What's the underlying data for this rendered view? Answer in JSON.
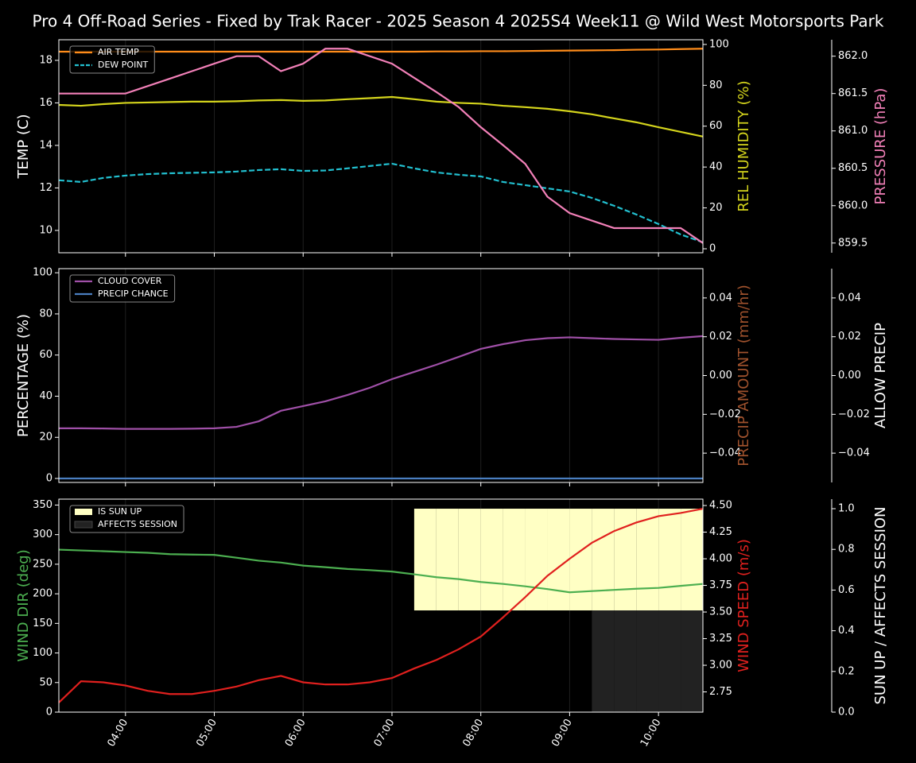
{
  "title": "Pro 4 Off-Road Series - Fixed by Trak Racer - 2025 Season 4 2025S4 Week11 @ Wild West Motorsports Park",
  "chart_data": [
    {
      "type": "line",
      "x": [
        "03:15",
        "03:30",
        "03:45",
        "04:00",
        "04:15",
        "04:30",
        "04:45",
        "05:00",
        "05:15",
        "05:30",
        "05:45",
        "06:00",
        "06:15",
        "06:30",
        "06:45",
        "07:00",
        "07:15",
        "07:30",
        "07:45",
        "08:00",
        "08:15",
        "08:30",
        "08:45",
        "09:00",
        "09:15",
        "09:30",
        "09:45",
        "10:00",
        "10:15",
        "10:30"
      ],
      "xlim": [
        "03:15",
        "10:30"
      ],
      "xticks": [
        "04:00",
        "05:00",
        "06:00",
        "07:00",
        "08:00",
        "09:00",
        "10:00"
      ],
      "ylabel": "TEMP (C)",
      "ylabel_color": "#ffffff",
      "ylim": [
        8.95,
        18.97
      ],
      "yticks": [
        10,
        12,
        14,
        16,
        18
      ],
      "y2label": "REL HUMIDITY (%)",
      "y2label_color": "#d4d41c",
      "y2lim": [
        -1.95,
        102.3
      ],
      "y2ticks": [
        0,
        20,
        40,
        60,
        80,
        100
      ],
      "y3label": "PRESSURE (hPa)",
      "y3label_color": "#f280b8",
      "y3lim": [
        859.37,
        862.22
      ],
      "y3ticks": [
        859.5,
        {
          "value": 860,
          "label": "860.0"
        },
        860.5,
        {
          "value": 861,
          "label": "861.0"
        },
        861.5,
        {
          "value": 862,
          "label": "862.0"
        }
      ],
      "legend": "upper left",
      "series": [
        {
          "name": "AIR TEMP",
          "color": "#ff8c1a",
          "style": "solid",
          "axis": "y",
          "values": [
            18.41,
            18.41,
            18.41,
            18.41,
            18.41,
            18.41,
            18.41,
            18.41,
            18.41,
            18.41,
            18.41,
            18.41,
            18.41,
            18.41,
            18.41,
            18.41,
            18.41,
            18.42,
            18.42,
            18.43,
            18.43,
            18.44,
            18.45,
            18.46,
            18.47,
            18.48,
            18.5,
            18.51,
            18.53,
            18.55
          ]
        },
        {
          "name": "DEW POINT",
          "color": "#22c0d0",
          "style": "dashed",
          "axis": "y",
          "values": [
            12.36,
            12.28,
            12.47,
            12.58,
            12.65,
            12.69,
            12.71,
            12.73,
            12.77,
            12.84,
            12.88,
            12.8,
            12.82,
            12.92,
            13.03,
            13.14,
            12.92,
            12.73,
            12.62,
            12.54,
            12.28,
            12.13,
            11.98,
            11.83,
            11.53,
            11.16,
            10.75,
            10.3,
            9.81,
            9.44
          ]
        },
        {
          "color": "#d4d41c",
          "style": "solid",
          "axis": "y2",
          "values": [
            70.4,
            70.0,
            70.8,
            71.4,
            71.6,
            71.8,
            72.0,
            72.0,
            72.2,
            72.6,
            72.8,
            72.4,
            72.6,
            73.2,
            73.7,
            74.3,
            73.2,
            72.0,
            71.4,
            71.0,
            70.0,
            69.3,
            68.5,
            67.3,
            65.8,
            63.8,
            61.9,
            59.5,
            57.2,
            54.9
          ]
        },
        {
          "color": "#f280b8",
          "style": "solid",
          "axis": "y3",
          "values": [
            861.5,
            861.5,
            861.5,
            861.5,
            861.6,
            861.7,
            861.8,
            861.9,
            862.0,
            862.0,
            861.8,
            861.9,
            862.1,
            862.1,
            862.0,
            861.9,
            861.71,
            861.52,
            861.32,
            861.05,
            860.81,
            860.56,
            860.12,
            859.9,
            859.8,
            859.7,
            859.7,
            859.7,
            859.7,
            859.5
          ]
        }
      ]
    },
    {
      "type": "line",
      "x": [
        "03:15",
        "03:30",
        "03:45",
        "04:00",
        "04:15",
        "04:30",
        "04:45",
        "05:00",
        "05:15",
        "05:30",
        "05:45",
        "06:00",
        "06:15",
        "06:30",
        "06:45",
        "07:00",
        "07:15",
        "07:30",
        "07:45",
        "08:00",
        "08:15",
        "08:30",
        "08:45",
        "09:00",
        "09:15",
        "09:30",
        "09:45",
        "10:00",
        "10:15",
        "10:30"
      ],
      "xlim": [
        "03:15",
        "10:30"
      ],
      "xticks": [
        "04:00",
        "05:00",
        "06:00",
        "07:00",
        "08:00",
        "09:00",
        "10:00"
      ],
      "ylabel": "PERCENTAGE (%)",
      "ylabel_color": "#ffffff",
      "ylim": [
        -1.93,
        102.0
      ],
      "yticks": [
        0,
        20,
        40,
        60,
        80,
        100
      ],
      "y2label": "PRECIP AMOUNT (mm/hr)",
      "y2label_color": "#a0522d",
      "y2lim": [
        -0.0551,
        0.0551
      ],
      "y2ticks": [
        {
          "value": -0.04,
          "label": "−0.04"
        },
        {
          "value": -0.02,
          "label": "−0.02"
        },
        {
          "value": 0,
          "label": "0.00"
        },
        0.02,
        0.04
      ],
      "y3label": "ALLOW PRECIP",
      "y3label_color": "#ffffff",
      "y3lim": [
        -0.0551,
        0.0551
      ],
      "y3ticks": [
        {
          "value": -0.04,
          "label": "−0.04"
        },
        {
          "value": -0.02,
          "label": "−0.02"
        },
        {
          "value": 0,
          "label": "0.00"
        },
        0.02,
        0.04
      ],
      "legend": "upper left",
      "series": [
        {
          "name": "CLOUD COVER",
          "color": "#a050a8",
          "style": "solid",
          "axis": "y",
          "values": [
            24.4,
            24.4,
            24.3,
            24.1,
            24.1,
            24.1,
            24.2,
            24.4,
            25.1,
            27.8,
            32.9,
            35.2,
            37.5,
            40.6,
            44.1,
            48.3,
            51.8,
            55.3,
            59.1,
            63.0,
            65.3,
            67.2,
            68.2,
            68.6,
            68.2,
            67.8,
            67.6,
            67.4,
            68.4,
            69.2
          ]
        },
        {
          "name": "PRECIP CHANCE",
          "color": "#4a7ec0",
          "style": "solid",
          "axis": "y",
          "values": [
            0,
            0,
            0,
            0,
            0,
            0,
            0,
            0,
            0,
            0,
            0,
            0,
            0,
            0,
            0,
            0,
            0,
            0,
            0,
            0,
            0,
            0,
            0,
            0,
            0,
            0,
            0,
            0,
            0,
            0
          ]
        }
      ]
    },
    {
      "type": "line",
      "x": [
        "03:15",
        "03:30",
        "03:45",
        "04:00",
        "04:15",
        "04:30",
        "04:45",
        "05:00",
        "05:15",
        "05:30",
        "05:45",
        "06:00",
        "06:15",
        "06:30",
        "06:45",
        "07:00",
        "07:15",
        "07:30",
        "07:45",
        "08:00",
        "08:15",
        "08:30",
        "08:45",
        "09:00",
        "09:15",
        "09:30",
        "09:45",
        "10:00",
        "10:15",
        "10:30"
      ],
      "xlim": [
        "03:15",
        "10:30"
      ],
      "xticks": [
        "04:00",
        "05:00",
        "06:00",
        "07:00",
        "08:00",
        "09:00",
        "10:00"
      ],
      "ylabel": "WIND DIR (deg)",
      "ylabel_color": "#4caf50",
      "ylim": [
        0,
        360
      ],
      "yticks": [
        0,
        50,
        100,
        150,
        200,
        250,
        300,
        350
      ],
      "y2label": "WIND SPEED (m/s)",
      "y2label_color": "#e0201e",
      "y2lim": [
        2.56,
        4.56
      ],
      "y2ticks": [
        2.75,
        {
          "value": 3,
          "label": "3.00"
        },
        3.25,
        {
          "value": 3.5,
          "label": "3.50"
        },
        3.75,
        {
          "value": 4,
          "label": "4.00"
        },
        4.25,
        {
          "value": 4.5,
          "label": "4.50"
        }
      ],
      "y3label": "SUN UP / AFFECTS SESSION",
      "y3label_color": "#ffffff",
      "y3lim": [
        0,
        1.047
      ],
      "y3ticks": [
        {
          "value": 0,
          "label": "0.0"
        },
        0.2,
        0.4,
        0.6,
        0.8,
        {
          "value": 1,
          "label": "1.0"
        }
      ],
      "legend": "upper left",
      "series": [
        {
          "name": "IS SUN UP",
          "color": "#ffffc4",
          "style": "area",
          "axis": "y3",
          "values": [
            0,
            0,
            0,
            0,
            0,
            0,
            0,
            0,
            0,
            0,
            0,
            0,
            0,
            0,
            0,
            0,
            1,
            1,
            1,
            1,
            1,
            1,
            1,
            1,
            1,
            1,
            1,
            1,
            1,
            1
          ]
        },
        {
          "name": "AFFECTS SESSION",
          "color": "#222222",
          "style": "area",
          "axis": "y3",
          "values": [
            0,
            0,
            0,
            0,
            0,
            0,
            0,
            0,
            0,
            0,
            0,
            0,
            0,
            0,
            0,
            0,
            0,
            0,
            0,
            0,
            0,
            0,
            0,
            0,
            1,
            1,
            1,
            1,
            1,
            1
          ]
        },
        {
          "color": "#4caf50",
          "style": "solid",
          "axis": "y",
          "values": [
            274.6,
            273.3,
            272,
            270.6,
            269.3,
            267,
            266.3,
            265.8,
            261,
            256,
            252.8,
            247.7,
            245,
            242,
            240,
            237.6,
            233,
            228,
            224.8,
            220,
            216.7,
            212.7,
            208,
            202.5,
            204.6,
            206.6,
            208.5,
            210,
            213.4,
            216.7
          ]
        },
        {
          "color": "#e0201e",
          "style": "solid",
          "axis": "y2",
          "values": [
            2.65,
            2.85,
            2.84,
            2.81,
            2.76,
            2.73,
            2.73,
            2.76,
            2.8,
            2.86,
            2.9,
            2.84,
            2.82,
            2.82,
            2.84,
            2.88,
            2.97,
            3.05,
            3.15,
            3.27,
            3.45,
            3.64,
            3.84,
            4.0,
            4.15,
            4.26,
            4.34,
            4.4,
            4.43,
            4.47
          ]
        }
      ]
    }
  ]
}
